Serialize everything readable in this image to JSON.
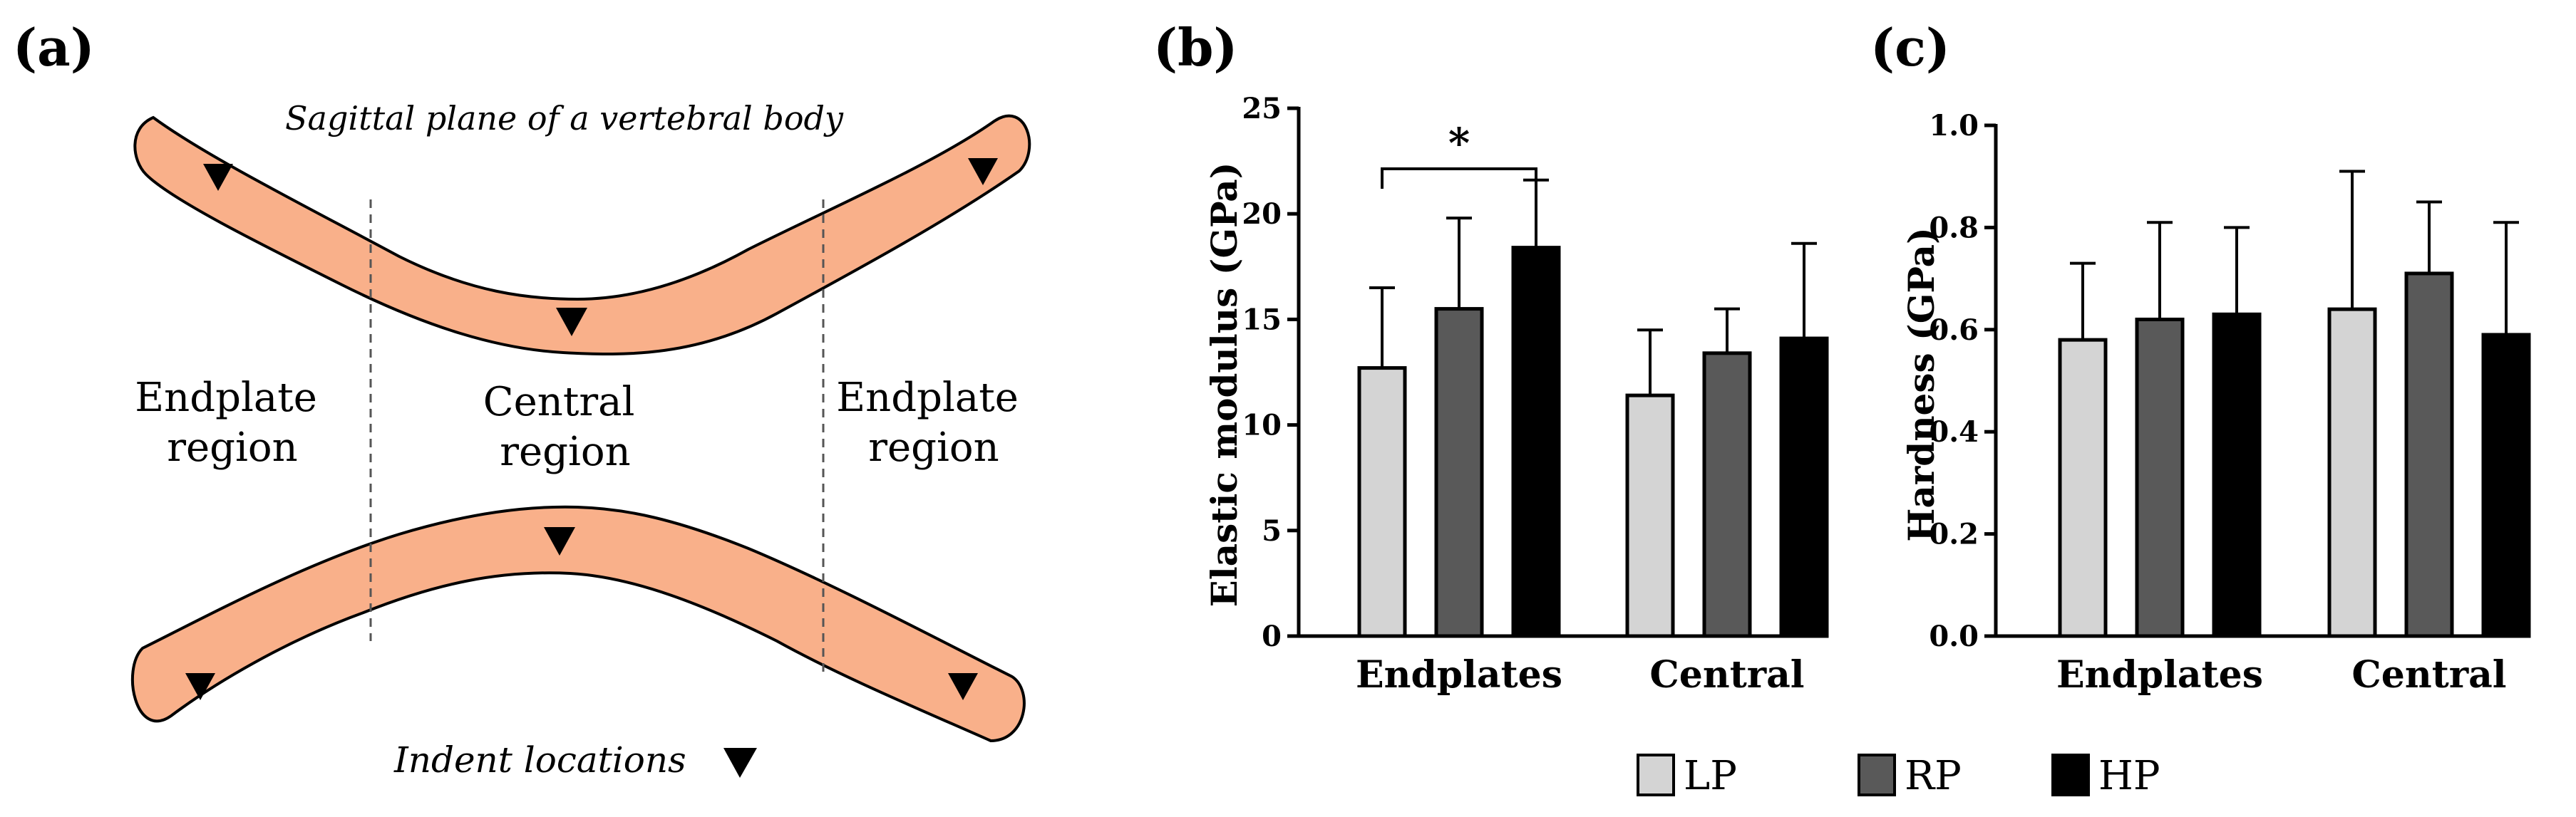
{
  "panels": {
    "a": {
      "label": "(a)",
      "title": "Sagittal plane of a vertebral body",
      "left_region": [
        "Endplate",
        "region"
      ],
      "center_region": [
        "Central",
        "region"
      ],
      "right_region": [
        "Endplate",
        "region"
      ],
      "indent_caption": "Indent locations",
      "indent_symbol": "▼",
      "colors": {
        "body_fill": "#F9B08A",
        "outline": "#000000"
      }
    },
    "b": {
      "label": "(b)"
    },
    "c": {
      "label": "(c)"
    }
  },
  "legend": {
    "items": [
      {
        "name": "LP",
        "color": "#D4D4D4"
      },
      {
        "name": "RP",
        "color": "#595959"
      },
      {
        "name": "HP",
        "color": "#000000"
      }
    ]
  },
  "chart_data": [
    {
      "type": "bar",
      "panel": "b",
      "categories": [
        "Endplates",
        "Central"
      ],
      "ylabel": "Elastic modulus (GPa)",
      "ylim": [
        0,
        25
      ],
      "yticks": [
        0,
        5,
        10,
        15,
        20,
        25
      ],
      "series": [
        {
          "name": "LP",
          "values": [
            12.7,
            11.4
          ],
          "errors": [
            3.8,
            3.1
          ],
          "color": "#D4D4D4"
        },
        {
          "name": "RP",
          "values": [
            15.5,
            13.4
          ],
          "errors": [
            4.3,
            2.1
          ],
          "color": "#595959"
        },
        {
          "name": "HP",
          "values": [
            18.4,
            14.1
          ],
          "errors": [
            3.2,
            4.5
          ],
          "color": "#000000"
        }
      ],
      "significance": [
        {
          "category": "Endplates",
          "from": "LP",
          "to": "HP",
          "label": "*"
        }
      ]
    },
    {
      "type": "bar",
      "panel": "c",
      "categories": [
        "Endplates",
        "Central"
      ],
      "ylabel": "Hardness (GPa)",
      "ylim": [
        0,
        1.0
      ],
      "yticks": [
        "0.0",
        "0.2",
        "0.4",
        "0.6",
        "0.8",
        "1.0"
      ],
      "series": [
        {
          "name": "LP",
          "values": [
            0.58,
            0.64
          ],
          "errors": [
            0.15,
            0.27
          ],
          "color": "#D4D4D4"
        },
        {
          "name": "RP",
          "values": [
            0.62,
            0.71
          ],
          "errors": [
            0.19,
            0.14
          ],
          "color": "#595959"
        },
        {
          "name": "HP",
          "values": [
            0.63,
            0.59
          ],
          "errors": [
            0.17,
            0.22
          ],
          "color": "#000000"
        }
      ],
      "significance": []
    }
  ]
}
